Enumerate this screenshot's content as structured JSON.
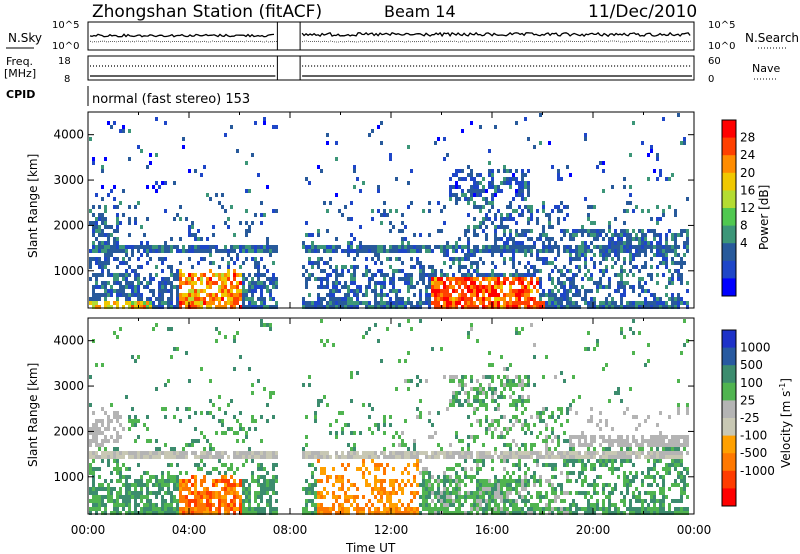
{
  "header": {
    "title": "Zhongshan Station (fitACF)",
    "beam": "Beam 14",
    "date": "11/Dec/2010"
  },
  "noise_panel": {
    "left_label": "N.Sky",
    "right_label": "N.Search",
    "left_ticks": [
      "10^5",
      "10^0"
    ],
    "right_ticks": [
      "10^5",
      "10^0"
    ]
  },
  "freq_panel": {
    "left_label_line1": "Freq.",
    "left_label_line2": "[MHz]",
    "right_label": "Nave",
    "left_ticks": [
      "18",
      "8"
    ],
    "right_ticks": [
      "60",
      "0"
    ]
  },
  "cpid": {
    "label": "CPID",
    "mode_text": "normal (fast stereo) 153"
  },
  "colorbars": {
    "power": {
      "title": "Power [dB]",
      "labels": [
        "28",
        "24",
        "20",
        "16",
        "12",
        "8",
        "4"
      ],
      "colors": [
        "#ff0000",
        "#ff4000",
        "#ff8c00",
        "#f0c800",
        "#b4dc32",
        "#50c850",
        "#3c9678",
        "#285a9b",
        "#1e46c8",
        "#0000ff"
      ]
    },
    "velocity": {
      "title": "Velocity [m s",
      "title_sup": "-1",
      "title_end": "]",
      "labels": [
        "1000",
        "500",
        "100",
        "25",
        "-25",
        "-100",
        "-500",
        "-1000"
      ],
      "colors": [
        "#1e32c8",
        "#285aa0",
        "#3c8c6e",
        "#50b450",
        "#b4b4b4",
        "#c8c8b4",
        "#ffa000",
        "#ff7800",
        "#ff3c00",
        "#ff0000"
      ]
    }
  },
  "chart_data": [
    {
      "type": "heatmap",
      "name": "power",
      "xlabel": "Time UT",
      "ylabel": "Slant Range [km]",
      "xlim": [
        0,
        24
      ],
      "ylim": [
        180,
        4500
      ],
      "x_ticks": [
        "00:00",
        "04:00",
        "08:00",
        "12:00",
        "16:00",
        "20:00",
        "00:00"
      ],
      "y_ticks": [
        "1000",
        "2000",
        "3000",
        "4000"
      ],
      "data_gap": [
        7.5,
        8.4
      ],
      "value_range_db": [
        3,
        30
      ]
    },
    {
      "type": "heatmap",
      "name": "velocity",
      "xlabel": "Time UT",
      "ylabel": "Slant Range [km]",
      "xlim": [
        0,
        24
      ],
      "ylim": [
        180,
        4500
      ],
      "x_ticks": [
        "00:00",
        "04:00",
        "08:00",
        "12:00",
        "16:00",
        "20:00",
        "00:00"
      ],
      "y_ticks": [
        "1000",
        "2000",
        "3000",
        "4000"
      ],
      "data_gap": [
        7.5,
        8.4
      ],
      "value_range_ms": [
        -1000,
        1000
      ]
    }
  ]
}
